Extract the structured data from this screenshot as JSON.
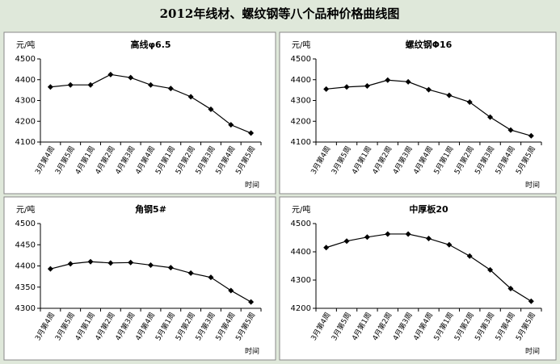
{
  "title": "2012年线材、螺纹钢等八个品种价格曲线图",
  "chart_data": [
    {
      "type": "line",
      "title": "高线φ6.5",
      "y_label": "元/吨",
      "x_label": "时间",
      "color": "#000000",
      "categories": [
        "3月第4周",
        "3月第5周",
        "4月第1周",
        "4月第2周",
        "4月第3周",
        "4月第4周",
        "5月第1周",
        "5月第2周",
        "5月第3周",
        "5月第4周",
        "5月第5周"
      ],
      "values": [
        4365,
        4375,
        4375,
        4425,
        4410,
        4375,
        4358,
        4318,
        4258,
        4183,
        4143
      ],
      "ylim": [
        4100,
        4500
      ],
      "yticks": [
        4100,
        4200,
        4300,
        4400,
        4500
      ]
    },
    {
      "type": "line",
      "title": "螺纹钢Φ16",
      "y_label": "元/吨",
      "x_label": "时间",
      "color": "#000000",
      "categories": [
        "3月第4周",
        "3月第5周",
        "4月第1周",
        "4月第2周",
        "4月第3周",
        "4月第4周",
        "5月第1周",
        "5月第2周",
        "5月第3周",
        "5月第4周",
        "5月第5周"
      ],
      "values": [
        4355,
        4365,
        4370,
        4398,
        4390,
        4352,
        4325,
        4292,
        4220,
        4158,
        4130
      ],
      "ylim": [
        4100,
        4500
      ],
      "yticks": [
        4100,
        4200,
        4300,
        4400,
        4500
      ]
    },
    {
      "type": "line",
      "title": "角钢5#",
      "y_label": "元/吨",
      "x_label": "时间",
      "color": "#000000",
      "categories": [
        "3月第4周",
        "3月第5周",
        "4月第1周",
        "4月第2周",
        "4月第3周",
        "4月第4周",
        "5月第1周",
        "5月第2周",
        "5月第3周",
        "5月第4周",
        "5月第5周"
      ],
      "values": [
        4393,
        4405,
        4410,
        4407,
        4408,
        4402,
        4396,
        4383,
        4373,
        4342,
        4315
      ],
      "ylim": [
        4300,
        4500
      ],
      "yticks": [
        4300,
        4350,
        4400,
        4450,
        4500
      ]
    },
    {
      "type": "line",
      "title": "中厚板20",
      "y_label": "元/吨",
      "x_label": "时间",
      "color": "#000000",
      "categories": [
        "3月第4周",
        "3月第5周",
        "4月第1周",
        "4月第2周",
        "4月第3周",
        "4月第4周",
        "5月第1周",
        "5月第2周",
        "5月第3周",
        "5月第4周",
        "5月第5周"
      ],
      "values": [
        4415,
        4438,
        4452,
        4463,
        4463,
        4447,
        4425,
        4385,
        4336,
        4270,
        4225
      ],
      "ylim": [
        4200,
        4500
      ],
      "yticks": [
        4200,
        4300,
        4400,
        4500
      ]
    }
  ]
}
